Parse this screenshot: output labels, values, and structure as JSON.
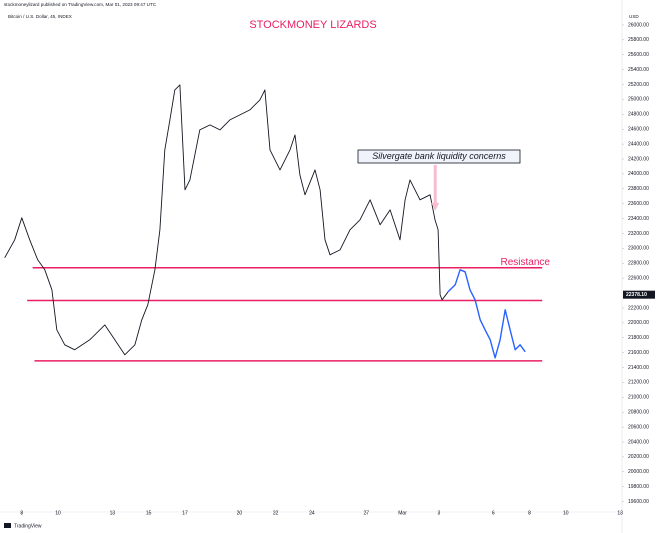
{
  "header": {
    "publisher": "stockmoneylizard published on TradingView.com, Mar 01, 2023 09:47 UTC",
    "symbol": "Bitcoin / U.S. Dollar, 45, INDEX",
    "currency": "USD",
    "brand": "TradingView"
  },
  "chart_data": {
    "type": "line",
    "title": "STOCKMONEY LIZARDS",
    "xlim": [
      6.8,
      41.1
    ],
    "ylim": [
      19460,
      26335
    ],
    "xticks": [
      8,
      10,
      13,
      15,
      17,
      20,
      22,
      24,
      27,
      {
        "value": 29,
        "label": "Mar"
      },
      {
        "value": 31,
        "label": "3"
      },
      {
        "value": 34,
        "label": "6"
      },
      {
        "value": 36,
        "label": "8"
      },
      {
        "value": 38,
        "label": "10"
      },
      {
        "value": 41,
        "label": "13"
      }
    ],
    "yticks": [
      {
        "value": 19600,
        "label": "19600.00"
      },
      {
        "value": 19800,
        "label": "19800.00"
      },
      {
        "value": 20000,
        "label": "20000.00"
      },
      {
        "value": 20200,
        "label": "20200.00"
      },
      {
        "value": 20400,
        "label": "20400.00"
      },
      {
        "value": 20600,
        "label": "20600.00"
      },
      {
        "value": 20800,
        "label": "20800.00"
      },
      {
        "value": 21000,
        "label": "21000.00"
      },
      {
        "value": 21200,
        "label": "21200.00"
      },
      {
        "value": 21400,
        "label": "21400.00"
      },
      {
        "value": 21600,
        "label": "21600.00"
      },
      {
        "value": 21800,
        "label": "21800.00"
      },
      {
        "value": 22000,
        "label": "22000.00"
      },
      {
        "value": 22200,
        "label": "22200.00"
      },
      {
        "value": 22600,
        "label": "22600.00"
      },
      {
        "value": 22800,
        "label": "22800.00"
      },
      {
        "value": 23000,
        "label": "23000.00"
      },
      {
        "value": 23200,
        "label": "23200.00"
      },
      {
        "value": 23400,
        "label": "23400.00"
      },
      {
        "value": 23600,
        "label": "23600.00"
      },
      {
        "value": 23800,
        "label": "23800.00"
      },
      {
        "value": 24000,
        "label": "24000.00"
      },
      {
        "value": 24200,
        "label": "24200.00"
      },
      {
        "value": 24400,
        "label": "24400.00"
      },
      {
        "value": 24600,
        "label": "24600.00"
      },
      {
        "value": 24800,
        "label": "24800.00"
      },
      {
        "value": 25000,
        "label": "25000.00"
      },
      {
        "value": 25200,
        "label": "25200.00"
      },
      {
        "value": 25400,
        "label": "25400.00"
      },
      {
        "value": 25600,
        "label": "25600.00"
      },
      {
        "value": 25800,
        "label": "25800.00"
      },
      {
        "value": 26000,
        "label": "26000.00"
      }
    ],
    "grid": false,
    "series": [
      {
        "color": "#131722",
        "x": [
          7.06,
          7.61,
          8,
          8.44,
          8.88,
          9.27,
          9.66,
          9.93,
          10.37,
          10.92,
          11.75,
          12.58,
          13.13,
          13.68,
          14.24,
          14.62,
          14.95,
          15.34,
          15.62,
          15.89,
          16.17,
          16.44,
          16.72,
          17,
          17.27,
          17.82,
          18.38,
          18.93,
          19.48,
          20.03,
          20.58,
          21.13,
          21.41,
          21.69,
          22.24,
          22.79,
          23.07,
          23.34,
          23.62,
          24.17,
          24.45,
          24.72,
          25,
          25.55,
          26.1,
          26.65,
          27.21,
          27.76,
          28.31,
          28.86,
          29.14,
          29.41,
          29.96,
          30.52,
          30.79,
          30.96,
          31.07,
          31.18,
          31.51
        ],
        "values": [
          22873,
          23115,
          23410,
          23115,
          22846,
          22712,
          22443,
          21907,
          21705,
          21638,
          21772,
          21973,
          21772,
          21571,
          21705,
          22041,
          22242,
          22712,
          23249,
          24322,
          24725,
          25128,
          25195,
          23786,
          23920,
          24591,
          24658,
          24591,
          24725,
          24792,
          24859,
          24993,
          25128,
          24322,
          24054,
          24322,
          24524,
          23987,
          23719,
          24054,
          23786,
          23115,
          22913,
          22980,
          23249,
          23383,
          23652,
          23316,
          23517,
          23115,
          23652,
          23920,
          23652,
          23719,
          23383,
          23249,
          22377,
          22309,
          22417
        ]
      },
      {
        "color": "#2962ff",
        "x": [
          31.51,
          31.9,
          32.17,
          32.45,
          32.72,
          33,
          33.28,
          33.55,
          33.83,
          34.1,
          34.38,
          34.66,
          34.93,
          35.21,
          35.48,
          35.76
        ],
        "values": [
          22417,
          22511,
          22712,
          22685,
          22443,
          22309,
          22041,
          21907,
          21772,
          21531,
          21772,
          22175,
          21907,
          21638,
          21705,
          21611
        ]
      }
    ],
    "levels": [
      {
        "value": 22740,
        "x": [
          8.6,
          36.7
        ],
        "color": "#e91e63"
      },
      {
        "value": 22300,
        "x": [
          8.3,
          36.7
        ],
        "color": "#e91e63"
      },
      {
        "value": 21490,
        "x": [
          8.7,
          36.7
        ],
        "color": "#e91e63"
      }
    ],
    "last_price": {
      "value": 22378.1,
      "label": "22378.10"
    },
    "annotations": [
      {
        "text": "Silvergate bank liquidity concerns",
        "x": 30.8,
        "y": 23450
      },
      {
        "text": "Resistance",
        "x": 34.4,
        "y": 22810
      }
    ]
  }
}
